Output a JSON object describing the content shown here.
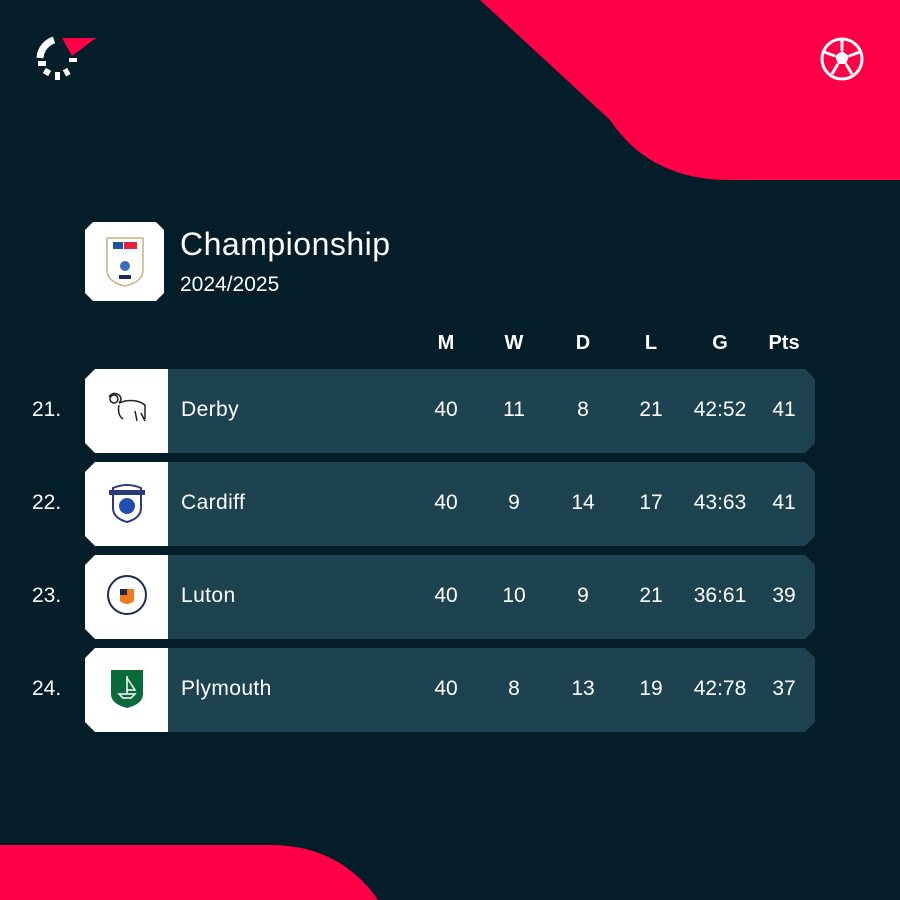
{
  "colors": {
    "background": "#031e28",
    "accent": "#ff0046",
    "row": "#1d4350"
  },
  "icons": {
    "brand": "flashscore-logo-icon",
    "sport": "football-icon"
  },
  "league": {
    "name": "Championship",
    "season": "2024/2025",
    "logo": "Sky Bet Championship EFL"
  },
  "headers": [
    "M",
    "W",
    "D",
    "L",
    "G",
    "Pts"
  ],
  "rows": [
    {
      "rank": "21.",
      "team": "Derby",
      "m": "40",
      "w": "11",
      "d": "8",
      "l": "21",
      "g": "42:52",
      "pts": "41"
    },
    {
      "rank": "22.",
      "team": "Cardiff",
      "m": "40",
      "w": "9",
      "d": "14",
      "l": "17",
      "g": "43:63",
      "pts": "41"
    },
    {
      "rank": "23.",
      "team": "Luton",
      "m": "40",
      "w": "10",
      "d": "9",
      "l": "21",
      "g": "36:61",
      "pts": "39"
    },
    {
      "rank": "24.",
      "team": "Plymouth",
      "m": "40",
      "w": "8",
      "d": "13",
      "l": "19",
      "g": "42:78",
      "pts": "37"
    }
  ]
}
